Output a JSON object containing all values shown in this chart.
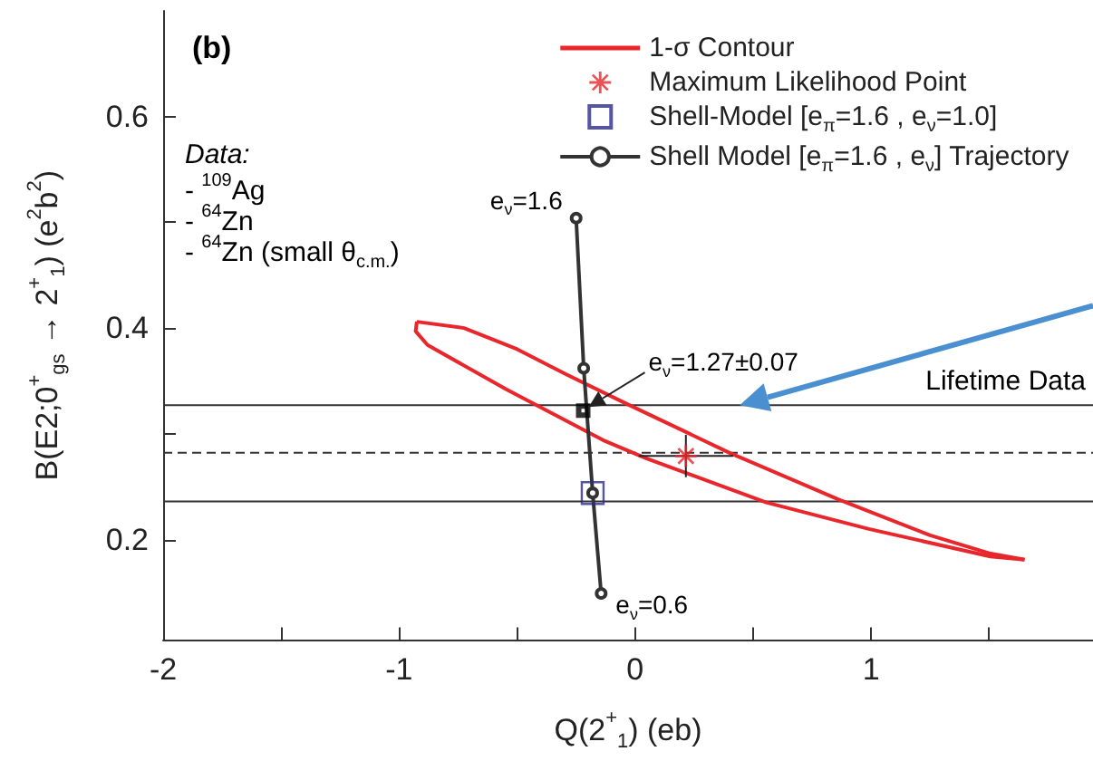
{
  "chart_data": {
    "type": "line",
    "xlabel": "Q(2$^{+}$$_{1}$) (eb)",
    "ylabel": "B(E2;0$^{+}$$_{gs}$ → 2$^{+}$$_{1}$) (e$^{2}$b$^{2}$)",
    "xlim": [
      -2,
      1.94
    ],
    "ylim": [
      0.105,
      0.7
    ],
    "xticks": [
      -2,
      {
        "value": -1.5,
        "label": null
      },
      -1,
      {
        "value": -0.5,
        "label": null
      },
      0,
      {
        "value": 0.5,
        "label": null
      },
      1,
      {
        "value": 1.5,
        "label": null
      }
    ],
    "yticks": [
      0.2,
      {
        "value": 0.3,
        "label": null
      },
      0.4,
      {
        "value": 0.5,
        "label": null
      },
      0.6
    ],
    "grid": false,
    "legend": "top right",
    "series": [
      {
        "name": "1-σ Contour",
        "type": "line",
        "color": "#e8262b",
        "marker": "none",
        "x": [
          -0.925,
          -0.725,
          -0.5,
          -0.29,
          -0.033,
          0.4,
          0.86,
          1.25,
          1.5,
          1.65
        ],
        "values": [
          0.406,
          0.4,
          0.38,
          0.356,
          0.328,
          0.282,
          0.238,
          0.204,
          0.187,
          0.181
        ]
      },
      {
        "color": "#e8262b",
        "marker": "none",
        "x": [
          -0.925,
          -0.93,
          -0.88,
          -0.546,
          -0.136,
          0.044,
          0.556,
          0.99,
          1.505,
          1.65
        ],
        "values": [
          0.406,
          0.397,
          0.384,
          0.342,
          0.294,
          0.277,
          0.235,
          0.21,
          0.184,
          0.181
        ]
      },
      {
        "name": "Maximum Likelihood Point",
        "type": "scatter",
        "color": "#e8262b",
        "marker": "star",
        "x": [
          0.215
        ],
        "values": [
          0.279
        ],
        "errors": [
          0.02
        ],
        "xerrors": [
          0.2
        ]
      },
      {
        "name": "Shell-Model [e$_{π}$=1.6 , e$_{ν}$=1.0]",
        "type": "scatter",
        "color": "#2b2b8c",
        "marker": "square",
        "x": [
          -0.18
        ],
        "values": [
          0.244
        ]
      },
      {
        "name": "Shell Model [e$_{π}$=1.6 , e$_{ν}$] Trajectory",
        "type": "line",
        "color": "#333333",
        "marker": "circle",
        "x": [
          -0.25,
          -0.218,
          -0.18,
          -0.144
        ],
        "values": [
          0.504,
          0.362,
          0.244,
          0.149
        ]
      },
      {
        "type": "scatter",
        "color": "#000000",
        "marker": "square",
        "x": [
          -0.22
        ],
        "values": [
          0.322
        ]
      }
    ],
    "ref_lines": [
      {
        "axis": "y",
        "value": 0.327,
        "label": "Lifetime Data",
        "color": "#333333",
        "line_style": "solid"
      },
      {
        "axis": "y",
        "value": 0.282,
        "color": "#333333",
        "line_style": "dashed"
      },
      {
        "axis": "y",
        "value": 0.236,
        "color": "#333333",
        "line_style": "solid"
      }
    ],
    "annotations": [
      "(b)",
      "Data:",
      "- $^{109}$Ag",
      "- $^{64}$Zn",
      "- $^{64}$Zn (small θ$_{c.m.}$)",
      {
        "text": "e$_{ν}$=1.6",
        "x": -0.25,
        "y": 0.504
      },
      {
        "text": "e$_{ν}$=0.6",
        "x": -0.144,
        "y": 0.149
      },
      {
        "text": "e$_{ν}$=1.27±0.07",
        "x": -0.22,
        "y": 0.322
      }
    ]
  }
}
